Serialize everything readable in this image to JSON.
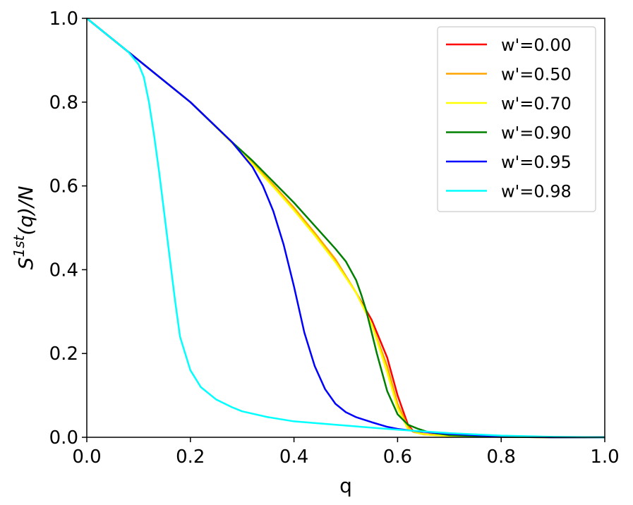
{
  "chart_data": {
    "type": "line",
    "xlabel": "q",
    "ylabel": "S^{1st}(q)/N",
    "ylabel_parts": {
      "base": "S",
      "sup": "1st",
      "rest": "(q)/N"
    },
    "xlim": [
      0.0,
      1.0
    ],
    "ylim": [
      0.0,
      1.0
    ],
    "xticks": [
      "0.0",
      "0.2",
      "0.4",
      "0.6",
      "0.8",
      "1.0"
    ],
    "yticks": [
      "0.0",
      "0.2",
      "0.4",
      "0.6",
      "0.8",
      "1.0"
    ],
    "grid": false,
    "legend_position": "top-right",
    "series": [
      {
        "name": "w'=0.00",
        "color": "#ff0000",
        "x": [
          0.0,
          0.08,
          0.2,
          0.28,
          0.32,
          0.36,
          0.4,
          0.44,
          0.48,
          0.52,
          0.55,
          0.58,
          0.6,
          0.62,
          0.63,
          0.65,
          0.7,
          0.8,
          0.9,
          1.0
        ],
        "y": [
          1.0,
          0.92,
          0.8,
          0.705,
          0.655,
          0.6,
          0.545,
          0.485,
          0.42,
          0.345,
          0.28,
          0.19,
          0.1,
          0.03,
          0.015,
          0.008,
          0.003,
          0.001,
          0.0,
          0.0
        ]
      },
      {
        "name": "w'=0.50",
        "color": "#ffa500",
        "x": [
          0.0,
          0.08,
          0.2,
          0.28,
          0.32,
          0.36,
          0.4,
          0.44,
          0.48,
          0.52,
          0.55,
          0.58,
          0.6,
          0.62,
          0.63,
          0.65,
          0.7,
          0.8,
          0.9,
          1.0
        ],
        "y": [
          1.0,
          0.92,
          0.8,
          0.705,
          0.655,
          0.603,
          0.548,
          0.488,
          0.425,
          0.345,
          0.27,
          0.17,
          0.08,
          0.025,
          0.013,
          0.007,
          0.003,
          0.001,
          0.0,
          0.0
        ]
      },
      {
        "name": "w'=0.70",
        "color": "#ffff00",
        "x": [
          0.0,
          0.08,
          0.2,
          0.28,
          0.32,
          0.36,
          0.4,
          0.44,
          0.48,
          0.52,
          0.55,
          0.58,
          0.6,
          0.62,
          0.64,
          0.66,
          0.7,
          0.8,
          0.9,
          1.0
        ],
        "y": [
          1.0,
          0.92,
          0.8,
          0.703,
          0.652,
          0.598,
          0.542,
          0.482,
          0.418,
          0.345,
          0.27,
          0.155,
          0.07,
          0.02,
          0.01,
          0.006,
          0.003,
          0.001,
          0.0,
          0.0
        ]
      },
      {
        "name": "w'=0.90",
        "color": "#008000",
        "x": [
          0.0,
          0.08,
          0.2,
          0.28,
          0.32,
          0.36,
          0.4,
          0.44,
          0.48,
          0.5,
          0.52,
          0.53,
          0.54,
          0.56,
          0.58,
          0.6,
          0.62,
          0.64,
          0.66,
          0.7,
          0.8,
          0.9,
          1.0
        ],
        "y": [
          1.0,
          0.92,
          0.8,
          0.705,
          0.66,
          0.61,
          0.56,
          0.505,
          0.45,
          0.42,
          0.375,
          0.34,
          0.3,
          0.2,
          0.11,
          0.055,
          0.03,
          0.02,
          0.012,
          0.005,
          0.001,
          0.0,
          0.0
        ]
      },
      {
        "name": "w'=0.95",
        "color": "#0000ff",
        "x": [
          0.0,
          0.08,
          0.2,
          0.28,
          0.32,
          0.34,
          0.36,
          0.38,
          0.4,
          0.42,
          0.44,
          0.46,
          0.48,
          0.5,
          0.52,
          0.55,
          0.58,
          0.6,
          0.64,
          0.7,
          0.8,
          0.9,
          1.0
        ],
        "y": [
          1.0,
          0.92,
          0.8,
          0.705,
          0.645,
          0.6,
          0.54,
          0.46,
          0.36,
          0.25,
          0.17,
          0.115,
          0.08,
          0.06,
          0.048,
          0.036,
          0.025,
          0.02,
          0.014,
          0.008,
          0.002,
          0.0,
          0.0
        ]
      },
      {
        "name": "w'=0.98",
        "color": "#00ffff",
        "x": [
          0.0,
          0.05,
          0.08,
          0.1,
          0.11,
          0.12,
          0.13,
          0.14,
          0.15,
          0.16,
          0.17,
          0.18,
          0.19,
          0.2,
          0.22,
          0.25,
          0.28,
          0.3,
          0.35,
          0.4,
          0.5,
          0.6,
          0.7,
          0.8,
          0.9,
          1.0
        ],
        "y": [
          1.0,
          0.95,
          0.92,
          0.89,
          0.86,
          0.8,
          0.72,
          0.63,
          0.53,
          0.43,
          0.33,
          0.24,
          0.2,
          0.16,
          0.12,
          0.09,
          0.072,
          0.062,
          0.048,
          0.038,
          0.028,
          0.018,
          0.01,
          0.004,
          0.001,
          0.0
        ]
      }
    ]
  }
}
